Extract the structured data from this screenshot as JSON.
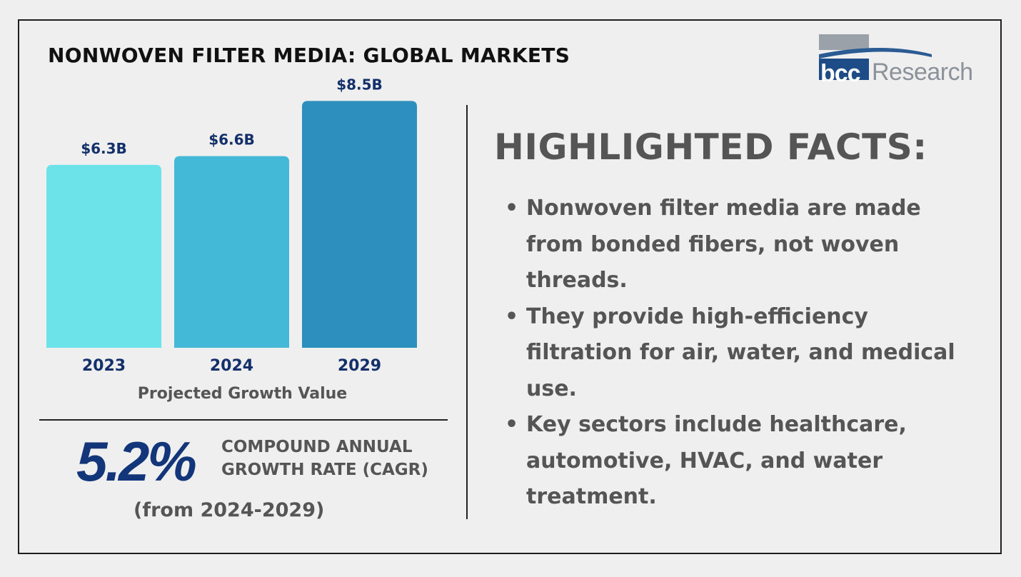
{
  "header": {
    "title": "NONWOVEN FILTER MEDIA: GLOBAL MARKETS"
  },
  "logo": {
    "mark": "bcc",
    "text": "Research"
  },
  "chart_data": {
    "type": "bar",
    "title": "Projected Growth Value",
    "categories": [
      "2023",
      "2024",
      "2029"
    ],
    "values": [
      6.3,
      6.6,
      8.5
    ],
    "value_labels": [
      "$6.3B",
      "$6.6B",
      "$8.5B"
    ],
    "unit": "$B",
    "ylim": [
      0,
      9.1
    ],
    "colors": [
      "#6ce3e8",
      "#43b8d7",
      "#2c8fbd"
    ],
    "label_color": "#14306a",
    "grid": false
  },
  "cagr": {
    "value": "5.2%",
    "label_line1": "COMPOUND ANNUAL",
    "label_line2": "GROWTH RATE (CAGR)",
    "period": "(from 2024-2029)"
  },
  "facts": {
    "heading": "HIGHLIGHTED FACTS:",
    "items": [
      "Nonwoven filter media are made from bonded fibers, not woven threads.",
      "They provide high-efficiency filtration for air, water, and medical use.",
      "Key sectors include healthcare, automotive, HVAC, and water treatment."
    ]
  }
}
